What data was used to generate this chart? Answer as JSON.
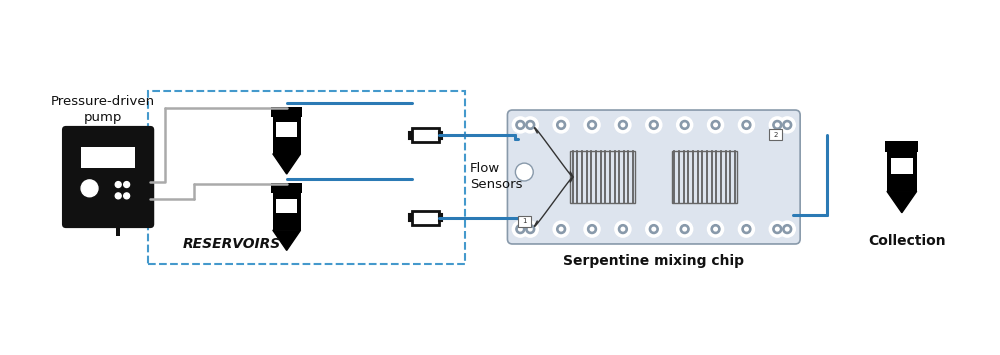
{
  "bg_color": "#ffffff",
  "blue_line_color": "#2b7ab5",
  "gray_line_color": "#aaaaaa",
  "black_color": "#111111",
  "chip_bg_color": "#dde4ee",
  "chip_border_color": "#8899aa",
  "dashed_box_color": "#4499cc",
  "pump_label": "Pressure-driven\npump",
  "reservoirs_label": "RESERVOIRS",
  "sensors_label": "Flow\nSensors",
  "chip_label": "Serpentine mixing chip",
  "collection_label": "Collection",
  "figsize": [
    10.0,
    3.55
  ],
  "dpi": 100
}
